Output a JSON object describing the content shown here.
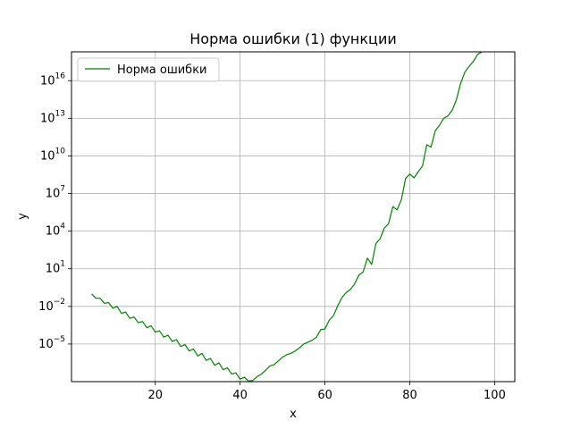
{
  "chart_data": {
    "type": "line",
    "title": "Норма ошибки (1) функции",
    "xlabel": "x",
    "ylabel": "y",
    "xlim": [
      0.25,
      104.75
    ],
    "ylim_log10": [
      -8.0,
      18.3
    ],
    "yscale": "log",
    "grid": true,
    "legend_position": "top-left",
    "x_ticks": [
      20,
      40,
      60,
      80,
      100
    ],
    "x_tick_labels": [
      "20",
      "40",
      "60",
      "80",
      "100"
    ],
    "y_ticks_log10": [
      -5,
      -2,
      1,
      4,
      7,
      10,
      13,
      16
    ],
    "y_tick_labels": [
      {
        "base": "10",
        "exp": "−5"
      },
      {
        "base": "10",
        "exp": "−2"
      },
      {
        "base": "10",
        "exp": "1"
      },
      {
        "base": "10",
        "exp": "4"
      },
      {
        "base": "10",
        "exp": "7"
      },
      {
        "base": "10",
        "exp": "10"
      },
      {
        "base": "10",
        "exp": "13"
      },
      {
        "base": "10",
        "exp": "16"
      }
    ],
    "series": [
      {
        "name": "Норма ошибки",
        "color": "#008000",
        "x": [
          5,
          6,
          7,
          8,
          9,
          10,
          11,
          12,
          13,
          14,
          15,
          16,
          17,
          18,
          19,
          20,
          21,
          22,
          23,
          24,
          25,
          26,
          27,
          28,
          29,
          30,
          31,
          32,
          33,
          34,
          35,
          36,
          37,
          38,
          39,
          40,
          41,
          42,
          43,
          44,
          45,
          46,
          47,
          48,
          49,
          50,
          51,
          52,
          53,
          54,
          55,
          56,
          57,
          58,
          59,
          60,
          61,
          62,
          63,
          64,
          65,
          66,
          67,
          68,
          69,
          70,
          71,
          72,
          73,
          74,
          75,
          76,
          77,
          78,
          79,
          80,
          81,
          82,
          83,
          84,
          85,
          86,
          87,
          88,
          89,
          90,
          91,
          92,
          93,
          94,
          95,
          96,
          97,
          98,
          99,
          100
        ],
        "log10_y": [
          -1.0,
          -1.35,
          -1.35,
          -1.75,
          -1.7,
          -2.15,
          -2.0,
          -2.55,
          -2.45,
          -2.95,
          -2.85,
          -3.3,
          -3.2,
          -3.7,
          -3.55,
          -4.05,
          -3.95,
          -4.45,
          -4.3,
          -4.8,
          -4.65,
          -5.2,
          -5.05,
          -5.55,
          -5.4,
          -5.95,
          -5.75,
          -6.3,
          -6.15,
          -6.7,
          -6.5,
          -7.05,
          -6.9,
          -7.4,
          -7.3,
          -7.8,
          -7.65,
          -7.95,
          -7.9,
          -7.6,
          -7.4,
          -7.1,
          -6.75,
          -6.65,
          -6.35,
          -6.05,
          -5.85,
          -5.75,
          -5.55,
          -5.3,
          -5.0,
          -4.85,
          -4.7,
          -4.45,
          -3.85,
          -3.8,
          -3.1,
          -2.75,
          -1.95,
          -1.3,
          -0.9,
          -0.65,
          -0.2,
          0.5,
          0.75,
          1.85,
          1.35,
          3.0,
          3.4,
          4.25,
          4.6,
          5.95,
          5.7,
          6.5,
          8.2,
          8.55,
          8.25,
          8.75,
          9.2,
          10.9,
          10.7,
          12.0,
          12.45,
          13.0,
          13.2,
          13.65,
          14.5,
          15.8,
          16.7,
          17.15,
          17.55,
          18.1,
          18.3,
          18.6,
          19.0,
          19.4
        ]
      }
    ]
  }
}
